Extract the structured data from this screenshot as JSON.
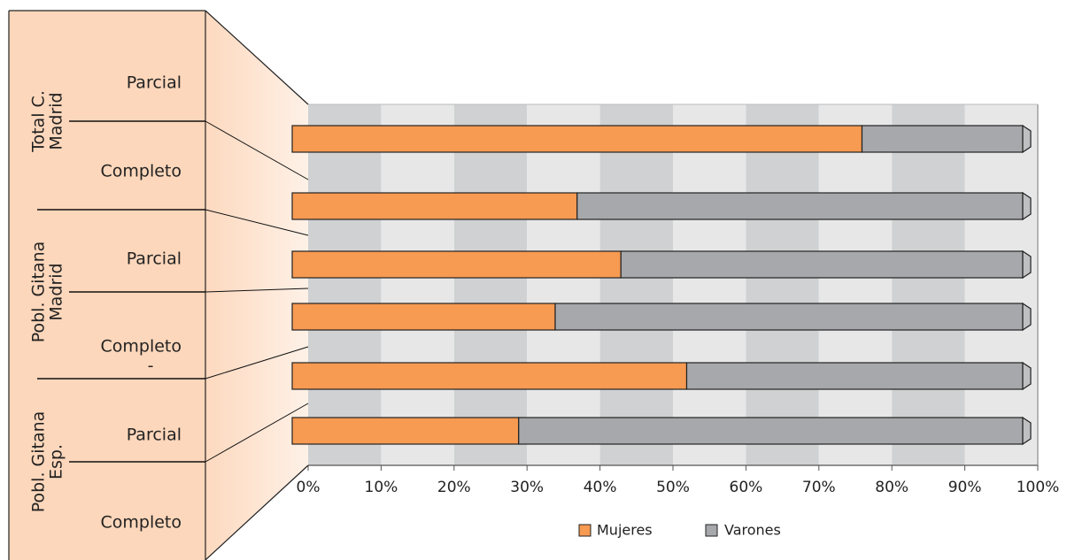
{
  "chart_data": {
    "type": "bar",
    "orientation": "horizontal",
    "stacked": true,
    "percent_stacked": true,
    "xlim": [
      0,
      100
    ],
    "x_ticks": [
      "0%",
      "10%",
      "20%",
      "30%",
      "40%",
      "50%",
      "60%",
      "70%",
      "80%",
      "90%",
      "100%"
    ],
    "groups": [
      {
        "label_line1": "Total C.",
        "label_line2": "Madrid"
      },
      {
        "label_line1": "Pobl. Gitana",
        "label_line2": "Madrid"
      },
      {
        "label_line1": "Pobl. Gitana",
        "label_line2": "Esp."
      }
    ],
    "row_labels": [
      "Parcial",
      "Completo",
      "Parcial",
      "Completo",
      "Parcial",
      "Completo"
    ],
    "stray_mark": "-",
    "series": [
      {
        "name": "Mujeres",
        "color": "#f79a52",
        "values": [
          78,
          39,
          45,
          36,
          54,
          31
        ]
      },
      {
        "name": "Varones",
        "color": "#a7a8ab",
        "values": [
          22,
          61,
          55,
          64,
          46,
          69
        ]
      }
    ],
    "legend": {
      "placement": "bottom",
      "items": [
        "Mujeres",
        "Varones"
      ]
    },
    "grid": true,
    "colors": {
      "band_dark": "#d0d1d3",
      "band_light": "#e7e7e8",
      "label_panel": "#fdd7bb",
      "fan_panel": "#fde8d8"
    }
  }
}
